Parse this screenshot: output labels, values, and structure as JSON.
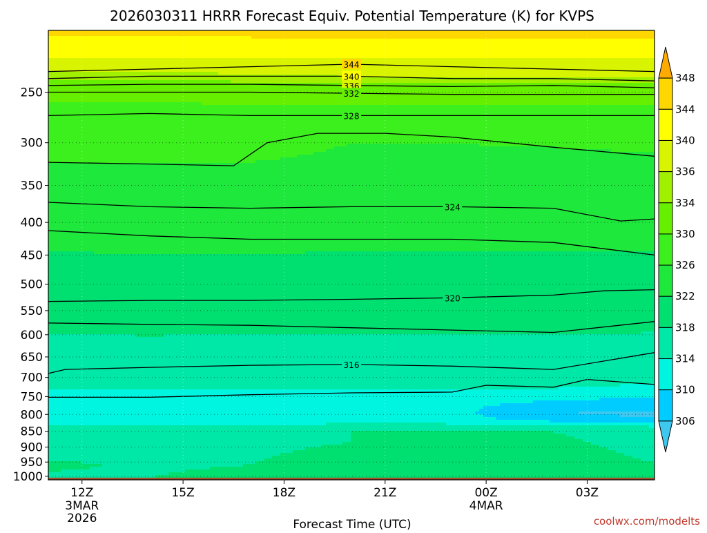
{
  "chart_data": {
    "type": "heatmap",
    "title": "2026030311 HRRR Forecast Equiv. Potential Temperature (K) for KVPS",
    "xlabel": "Forecast Time (UTC)",
    "ylabel": "",
    "credit": "coolwx.com/modelts",
    "x_ticks": [
      {
        "hour": 12,
        "label": "12Z",
        "sub1": "3MAR",
        "sub2": "2026"
      },
      {
        "hour": 15,
        "label": "15Z",
        "sub1": "",
        "sub2": ""
      },
      {
        "hour": 18,
        "label": "18Z",
        "sub1": "",
        "sub2": ""
      },
      {
        "hour": 21,
        "label": "21Z",
        "sub1": "",
        "sub2": ""
      },
      {
        "hour": 24,
        "label": "00Z",
        "sub1": "4MAR",
        "sub2": ""
      },
      {
        "hour": 27,
        "label": "03Z",
        "sub1": "",
        "sub2": ""
      }
    ],
    "x_range_hours": [
      11,
      29
    ],
    "y_ticks_hpa": [
      250,
      300,
      350,
      400,
      450,
      500,
      550,
      600,
      650,
      700,
      750,
      800,
      850,
      900,
      950,
      1000
    ],
    "y_range_hpa": [
      200,
      1013
    ],
    "color_levels": [
      306,
      310,
      314,
      318,
      322,
      326,
      330,
      334,
      336,
      340,
      344,
      348
    ],
    "color_bands": [
      {
        "lo": 302,
        "hi": 306,
        "color": "#3ec8f0"
      },
      {
        "lo": 306,
        "hi": 310,
        "color": "#00ccff"
      },
      {
        "lo": 310,
        "hi": 314,
        "color": "#00f5e0"
      },
      {
        "lo": 314,
        "hi": 318,
        "color": "#00e8a8"
      },
      {
        "lo": 318,
        "hi": 322,
        "color": "#00e070"
      },
      {
        "lo": 322,
        "hi": 326,
        "color": "#1ee83c"
      },
      {
        "lo": 326,
        "hi": 330,
        "color": "#3cf01e"
      },
      {
        "lo": 330,
        "hi": 334,
        "color": "#66f000"
      },
      {
        "lo": 334,
        "hi": 336,
        "color": "#a0f000"
      },
      {
        "lo": 336,
        "hi": 340,
        "color": "#d8f400"
      },
      {
        "lo": 340,
        "hi": 344,
        "color": "#ffff00"
      },
      {
        "lo": 344,
        "hi": 348,
        "color": "#ffd700"
      },
      {
        "lo": 348,
        "hi": 352,
        "color": "#ffaa00"
      }
    ],
    "ground_color": "#a0522d",
    "surface_hpa": 1005,
    "profile_columns": [
      {
        "hour": 11.0,
        "p": [
          1005,
          960,
          925,
          880,
          850,
          830,
          815,
          800,
          780,
          755,
          730,
          700,
          640,
          600,
          560,
          520,
          470,
          420,
          360,
          322,
          280,
          258,
          245,
          232,
          220,
          205
        ],
        "th": [
          317,
          319,
          317,
          316,
          318,
          314,
          312,
          311,
          311,
          312,
          314,
          316,
          317,
          318,
          319,
          320,
          321,
          323,
          324,
          326,
          328,
          330,
          332,
          336,
          340,
          344
        ]
      },
      {
        "hour": 14.0,
        "p": [
          1005,
          955,
          920,
          880,
          852,
          828,
          812,
          798,
          778,
          752,
          728,
          698,
          642,
          602,
          560,
          520,
          470,
          425,
          370,
          322,
          280,
          258,
          245,
          232,
          222,
          205
        ],
        "th": [
          318,
          317,
          317,
          316,
          318,
          314,
          312,
          311,
          311,
          312,
          314,
          316,
          317,
          318,
          319,
          320,
          321,
          323,
          324,
          326,
          328,
          330,
          332,
          336,
          340,
          344
        ]
      },
      {
        "hour": 17.0,
        "p": [
          1005,
          960,
          920,
          885,
          850,
          828,
          812,
          796,
          778,
          752,
          728,
          698,
          645,
          600,
          560,
          520,
          470,
          425,
          370,
          322,
          288,
          262,
          248,
          234,
          222,
          206
        ],
        "th": [
          320,
          318,
          317,
          316,
          318,
          313,
          312,
          311,
          311,
          312,
          314,
          316,
          317,
          318,
          319,
          320,
          321,
          323,
          324,
          326,
          328,
          330,
          332,
          336,
          340,
          344
        ]
      },
      {
        "hour": 20.0,
        "p": [
          1005,
          960,
          920,
          885,
          848,
          826,
          812,
          798,
          778,
          752,
          728,
          698,
          645,
          600,
          560,
          520,
          470,
          420,
          360,
          300,
          282,
          262,
          248,
          236,
          222,
          206
        ],
        "th": [
          322,
          321,
          320,
          318,
          318,
          314,
          312,
          311,
          311,
          312,
          314,
          316,
          317,
          318,
          319,
          320,
          321,
          323,
          324,
          326,
          328,
          330,
          332,
          336,
          340,
          344
        ]
      },
      {
        "hour": 23.0,
        "p": [
          1005,
          965,
          925,
          885,
          850,
          828,
          812,
          798,
          778,
          752,
          728,
          698,
          645,
          600,
          560,
          520,
          470,
          420,
          360,
          300,
          282,
          262,
          248,
          236,
          222,
          206
        ],
        "th": [
          321,
          322,
          321,
          319,
          318,
          314,
          312,
          311,
          311,
          312,
          314,
          316,
          317,
          318,
          319,
          320,
          321,
          323,
          324,
          326,
          328,
          330,
          332,
          336,
          340,
          344
        ]
      },
      {
        "hour": 26.0,
        "p": [
          1005,
          960,
          925,
          885,
          852,
          830,
          815,
          798,
          778,
          752,
          728,
          698,
          645,
          600,
          560,
          520,
          470,
          420,
          360,
          305,
          282,
          262,
          248,
          236,
          222,
          206
        ],
        "th": [
          320,
          321,
          320,
          319,
          318,
          314,
          308,
          306,
          308,
          311,
          314,
          316,
          317,
          318,
          319,
          320,
          321,
          323,
          324,
          326,
          328,
          330,
          332,
          336,
          340,
          344
        ]
      },
      {
        "hour": 29.0,
        "p": [
          1005,
          955,
          920,
          880,
          850,
          830,
          815,
          798,
          778,
          752,
          728,
          695,
          640,
          595,
          555,
          515,
          470,
          420,
          360,
          310,
          282,
          262,
          248,
          236,
          222,
          206
        ],
        "th": [
          318,
          318,
          317,
          316,
          316,
          313,
          307,
          305,
          307,
          310,
          313,
          316,
          317,
          318,
          319,
          320,
          321,
          323,
          324,
          326,
          328,
          330,
          332,
          336,
          340,
          344
        ]
      }
    ],
    "contour_lines": [
      {
        "level": 344,
        "label": "344",
        "pts": [
          [
            11.0,
            232
          ],
          [
            14.0,
            230
          ],
          [
            17.0,
            228
          ],
          [
            20.0,
            226
          ],
          [
            23.0,
            228
          ],
          [
            26.0,
            230
          ],
          [
            29.0,
            232
          ]
        ]
      },
      {
        "level": 340,
        "label": "340",
        "pts": [
          [
            11.0,
            238
          ],
          [
            14.0,
            236
          ],
          [
            17.0,
            236
          ],
          [
            20.0,
            236
          ],
          [
            23.0,
            238
          ],
          [
            26.0,
            238
          ],
          [
            29.0,
            240
          ]
        ]
      },
      {
        "level": 336,
        "label": "336",
        "pts": [
          [
            11.0,
            244
          ],
          [
            14.0,
            243
          ],
          [
            17.0,
            243
          ],
          [
            20.0,
            244
          ],
          [
            23.0,
            245
          ],
          [
            26.0,
            244
          ],
          [
            29.0,
            246
          ]
        ]
      },
      {
        "level": 332,
        "label": "332",
        "pts": [
          [
            11.0,
            250
          ],
          [
            14.0,
            250
          ],
          [
            17.0,
            250
          ],
          [
            20.0,
            251
          ],
          [
            23.0,
            252
          ],
          [
            26.0,
            252
          ],
          [
            29.0,
            252
          ]
        ]
      },
      {
        "level": 328,
        "label": "328",
        "pts": [
          [
            11.0,
            272
          ],
          [
            14.0,
            270
          ],
          [
            17.0,
            272
          ],
          [
            20.0,
            272
          ],
          [
            23.0,
            272
          ],
          [
            26.0,
            272
          ],
          [
            29.0,
            272
          ]
        ]
      },
      {
        "level": 326,
        "label": "",
        "pts": [
          [
            11.0,
            322
          ],
          [
            14.0,
            324
          ],
          [
            16.5,
            326
          ],
          [
            17.5,
            300
          ],
          [
            19.0,
            290
          ],
          [
            21.0,
            290
          ],
          [
            23.0,
            294
          ],
          [
            26.0,
            305
          ],
          [
            29.0,
            315
          ]
        ]
      },
      {
        "level": 324,
        "label": "324",
        "pts": [
          [
            11.0,
            372
          ],
          [
            14.0,
            378
          ],
          [
            17.0,
            380
          ],
          [
            20.0,
            378
          ],
          [
            23.0,
            378
          ],
          [
            26.0,
            380
          ],
          [
            28.0,
            398
          ],
          [
            29.0,
            395
          ]
        ]
      },
      {
        "level": 322,
        "label": "",
        "pts": [
          [
            11.0,
            412
          ],
          [
            14.0,
            420
          ],
          [
            17.0,
            425
          ],
          [
            20.0,
            425
          ],
          [
            23.0,
            425
          ],
          [
            26.0,
            430
          ],
          [
            29.0,
            450
          ]
        ]
      },
      {
        "level": 320,
        "label": "320",
        "pts": [
          [
            11.0,
            532
          ],
          [
            14.0,
            530
          ],
          [
            17.0,
            530
          ],
          [
            20.0,
            528
          ],
          [
            23.0,
            525
          ],
          [
            26.0,
            520
          ],
          [
            27.5,
            512
          ],
          [
            29.0,
            510
          ]
        ]
      },
      {
        "level": 318,
        "label": "",
        "pts": [
          [
            11.0,
            575
          ],
          [
            14.0,
            578
          ],
          [
            17.0,
            580
          ],
          [
            20.0,
            585
          ],
          [
            23.0,
            590
          ],
          [
            26.0,
            595
          ],
          [
            29.0,
            572
          ]
        ]
      },
      {
        "level": 316,
        "label": "316",
        "pts": [
          [
            11.0,
            690
          ],
          [
            11.5,
            680
          ],
          [
            14.0,
            675
          ],
          [
            17.0,
            670
          ],
          [
            20.0,
            668
          ],
          [
            23.0,
            672
          ],
          [
            26.0,
            680
          ],
          [
            29.0,
            640
          ]
        ]
      },
      {
        "level": 314,
        "label": "",
        "pts": [
          [
            11.0,
            752
          ],
          [
            14.0,
            752
          ],
          [
            17.0,
            745
          ],
          [
            20.0,
            740
          ],
          [
            23.0,
            738
          ],
          [
            24.0,
            720
          ],
          [
            26.0,
            725
          ],
          [
            27.0,
            705
          ],
          [
            29.0,
            718
          ]
        ]
      }
    ]
  }
}
